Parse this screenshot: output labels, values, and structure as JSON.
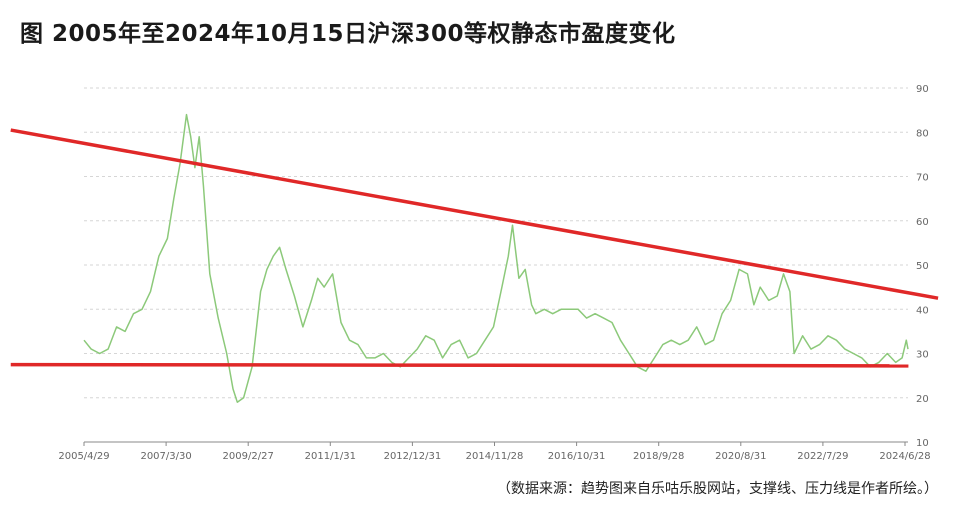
{
  "title": "图  2005年至2024年10月15日沪深300等权静态市盈度变化",
  "source": "（数据来源：趋势图来自乐咕乐股网站，支撑线、压力线是作者所绘。）",
  "chart_data": {
    "type": "line",
    "xlabel": "",
    "ylabel": "",
    "ylim": [
      10,
      90
    ],
    "yticks": [
      10,
      20,
      30,
      40,
      50,
      60,
      70,
      80,
      90
    ],
    "xtick_labels": [
      "2005/4/29",
      "2007/3/30",
      "2009/2/27",
      "2011/1/31",
      "2012/12/31",
      "2014/11/28",
      "2016/10/31",
      "2018/9/28",
      "2020/8/31",
      "2022/7/29",
      "2024/6/28"
    ],
    "grid": true,
    "series": [
      {
        "color": "#8cc97a",
        "x": [
          2005.33,
          2005.5,
          2005.7,
          2005.9,
          2006.1,
          2006.3,
          2006.5,
          2006.7,
          2006.9,
          2007.1,
          2007.3,
          2007.45,
          2007.6,
          2007.75,
          2007.85,
          2007.95,
          2008.05,
          2008.15,
          2008.3,
          2008.5,
          2008.7,
          2008.85,
          2008.95,
          2009.1,
          2009.3,
          2009.5,
          2009.65,
          2009.8,
          2009.95,
          2010.1,
          2010.3,
          2010.5,
          2010.7,
          2010.85,
          2011.0,
          2011.2,
          2011.4,
          2011.6,
          2011.8,
          2012.0,
          2012.2,
          2012.4,
          2012.6,
          2012.8,
          2013.0,
          2013.2,
          2013.4,
          2013.6,
          2013.8,
          2014.0,
          2014.2,
          2014.4,
          2014.6,
          2014.8,
          2015.0,
          2015.2,
          2015.35,
          2015.45,
          2015.6,
          2015.75,
          2015.9,
          2016.0,
          2016.2,
          2016.4,
          2016.6,
          2016.8,
          2017.0,
          2017.2,
          2017.4,
          2017.6,
          2017.8,
          2018.0,
          2018.2,
          2018.4,
          2018.6,
          2018.8,
          2019.0,
          2019.2,
          2019.4,
          2019.6,
          2019.8,
          2020.0,
          2020.2,
          2020.4,
          2020.6,
          2020.8,
          2021.0,
          2021.15,
          2021.3,
          2021.5,
          2021.7,
          2021.85,
          2022.0,
          2022.1,
          2022.3,
          2022.5,
          2022.7,
          2022.9,
          2023.1,
          2023.3,
          2023.5,
          2023.7,
          2023.9,
          2024.1,
          2024.3,
          2024.5,
          2024.65,
          2024.75,
          2024.79
        ],
        "y": [
          33,
          31,
          30,
          31,
          36,
          35,
          39,
          40,
          44,
          52,
          56,
          65,
          73,
          84,
          79,
          72,
          79,
          68,
          48,
          38,
          30,
          22,
          19,
          20,
          27,
          44,
          49,
          52,
          54,
          49,
          43,
          36,
          42,
          47,
          45,
          48,
          37,
          33,
          32,
          29,
          29,
          30,
          28,
          27,
          29,
          31,
          34,
          33,
          29,
          32,
          33,
          29,
          30,
          33,
          36,
          45,
          52,
          59,
          47,
          49,
          41,
          39,
          40,
          39,
          40,
          40,
          40,
          38,
          39,
          38,
          37,
          33,
          30,
          27,
          26,
          29,
          32,
          33,
          32,
          33,
          36,
          32,
          33,
          39,
          42,
          49,
          48,
          41,
          45,
          42,
          43,
          48,
          44,
          30,
          34,
          31,
          32,
          34,
          33,
          31,
          30,
          29,
          27,
          28,
          30,
          28,
          29,
          33,
          31
        ]
      }
    ],
    "annotations": [
      {
        "type": "resistance",
        "color": "#e02828",
        "x": [
          2003.6,
          2025.5
        ],
        "y": [
          80.5,
          42.5
        ]
      },
      {
        "type": "support",
        "color": "#e02828",
        "x": [
          2003.6,
          2024.8
        ],
        "y": [
          27.5,
          27.2
        ]
      }
    ]
  }
}
